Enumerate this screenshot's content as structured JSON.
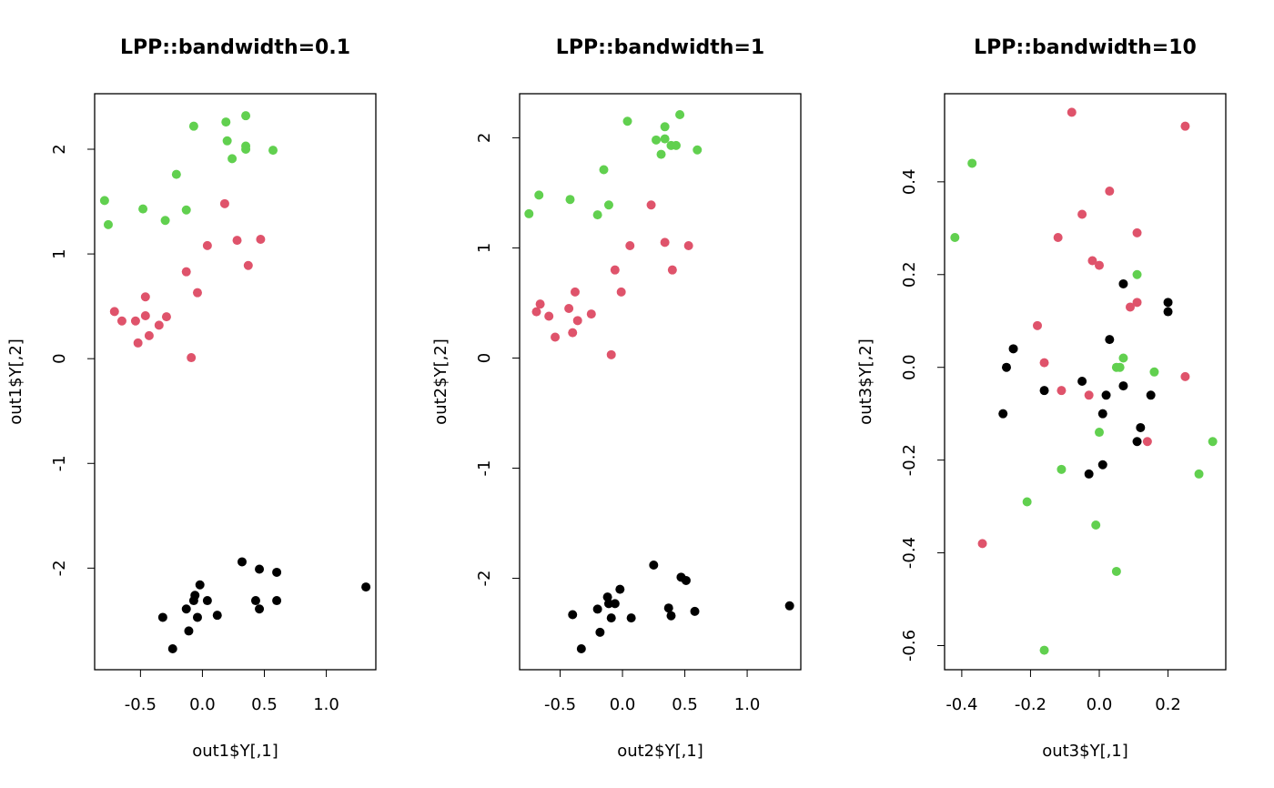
{
  "chart_data": [
    {
      "type": "scatter",
      "title": "LPP::bandwidth=0.1",
      "xlabel": "out1$Y[,1]",
      "ylabel": "out1$Y[,2]",
      "xlim": [
        -0.87,
        1.4
      ],
      "ylim": [
        -2.97,
        2.53
      ],
      "xticks": [
        -0.5,
        {
          "value": 0,
          "label": "0.0"
        },
        0.5,
        {
          "value": 1,
          "label": "1.0"
        }
      ],
      "yticks": [
        -2,
        -1,
        0,
        1,
        2
      ],
      "series": [
        {
          "color": "#61D04F",
          "x": [
            -0.79,
            -0.76,
            -0.48,
            -0.3,
            -0.21,
            -0.13,
            -0.07,
            0.19,
            0.2,
            0.24,
            0.35,
            0.35,
            0.35,
            0.57
          ],
          "values": [
            1.51,
            1.28,
            1.43,
            1.32,
            1.76,
            1.42,
            2.22,
            2.26,
            2.08,
            1.91,
            2.32,
            2.03,
            2.0,
            1.99
          ]
        },
        {
          "color": "#DF536B",
          "x": [
            -0.71,
            -0.65,
            -0.54,
            -0.52,
            -0.46,
            -0.46,
            -0.43,
            -0.35,
            -0.29,
            -0.13,
            -0.09,
            -0.04,
            0.04,
            0.18,
            0.28,
            0.37,
            0.47
          ],
          "values": [
            0.45,
            0.36,
            0.36,
            0.15,
            0.59,
            0.41,
            0.22,
            0.32,
            0.4,
            0.83,
            0.01,
            0.63,
            1.08,
            1.48,
            1.13,
            0.89,
            1.14
          ]
        },
        {
          "color": "#000000",
          "x": [
            -0.32,
            -0.24,
            -0.13,
            -0.11,
            -0.07,
            -0.06,
            -0.04,
            -0.02,
            0.04,
            0.12,
            0.32,
            0.43,
            0.46,
            0.46,
            0.6,
            0.6,
            1.32
          ],
          "values": [
            -2.47,
            -2.77,
            -2.39,
            -2.6,
            -2.31,
            -2.26,
            -2.47,
            -2.16,
            -2.31,
            -2.45,
            -1.94,
            -2.31,
            -2.01,
            -2.39,
            -2.04,
            -2.31,
            -2.18
          ]
        }
      ]
    },
    {
      "type": "scatter",
      "title": "LPP::bandwidth=1",
      "xlabel": "out2$Y[,1]",
      "ylabel": "out2$Y[,2]",
      "xlim": [
        -0.825,
        1.43
      ],
      "ylim": [
        -2.83,
        2.4
      ],
      "xticks": [
        -0.5,
        {
          "value": 0,
          "label": "0.0"
        },
        0.5,
        {
          "value": 1,
          "label": "1.0"
        }
      ],
      "yticks": [
        -2,
        -1,
        0,
        1,
        2
      ],
      "series": [
        {
          "color": "#61D04F",
          "x": [
            -0.75,
            -0.67,
            -0.42,
            -0.2,
            -0.15,
            -0.11,
            0.04,
            0.27,
            0.34,
            0.34,
            0.31,
            0.39,
            0.43,
            0.46,
            0.6
          ],
          "values": [
            1.31,
            1.48,
            1.44,
            1.3,
            1.71,
            1.39,
            2.15,
            1.98,
            2.1,
            1.99,
            1.85,
            1.93,
            1.93,
            2.21,
            1.89
          ]
        },
        {
          "color": "#DF536B",
          "x": [
            -0.69,
            -0.66,
            -0.59,
            -0.54,
            -0.43,
            -0.4,
            -0.38,
            -0.36,
            -0.25,
            -0.09,
            -0.06,
            -0.01,
            0.06,
            0.23,
            0.34,
            0.4,
            0.53
          ],
          "values": [
            0.42,
            0.49,
            0.38,
            0.19,
            0.45,
            0.23,
            0.6,
            0.34,
            0.4,
            0.03,
            0.8,
            0.6,
            1.02,
            1.39,
            1.05,
            0.8,
            1.02
          ]
        },
        {
          "color": "#000000",
          "x": [
            -0.4,
            -0.33,
            -0.2,
            -0.18,
            -0.12,
            -0.11,
            -0.09,
            -0.06,
            -0.02,
            0.07,
            0.25,
            0.47,
            0.37,
            0.39,
            0.51,
            0.58,
            1.34
          ],
          "values": [
            -2.33,
            -2.64,
            -2.28,
            -2.49,
            -2.17,
            -2.23,
            -2.36,
            -2.23,
            -2.1,
            -2.36,
            -1.88,
            -1.99,
            -2.27,
            -2.34,
            -2.02,
            -2.3,
            -2.25
          ]
        }
      ]
    },
    {
      "type": "scatter",
      "title": "LPP::bandwidth=10",
      "xlabel": "out3$Y[,1]",
      "ylabel": "out3$Y[,2]",
      "xlim": [
        -0.45,
        0.368
      ],
      "ylim": [
        -0.652,
        0.59
      ],
      "xticks": [
        -0.4,
        -0.2,
        {
          "value": 0,
          "label": "0.0"
        },
        0.2
      ],
      "yticks": [
        -0.6,
        -0.4,
        -0.2,
        {
          "value": 0,
          "label": "0.0"
        },
        0.2,
        0.4
      ],
      "series": [
        {
          "color": "#61D04F",
          "x": [
            -0.42,
            -0.37,
            -0.21,
            -0.11,
            -0.01,
            0.0,
            0.05,
            0.05,
            0.06,
            0.07,
            0.11,
            0.16,
            0.29,
            0.33,
            -0.16
          ],
          "values": [
            0.28,
            0.44,
            -0.29,
            -0.22,
            -0.34,
            -0.14,
            0.0,
            -0.44,
            0.0,
            0.02,
            0.2,
            -0.01,
            -0.23,
            -0.16,
            -0.61
          ]
        },
        {
          "color": "#DF536B",
          "x": [
            -0.34,
            -0.18,
            -0.16,
            -0.12,
            -0.11,
            -0.08,
            -0.05,
            -0.03,
            -0.02,
            0.0,
            0.03,
            0.11,
            0.11,
            0.09,
            0.14,
            0.25,
            0.25
          ],
          "values": [
            -0.38,
            0.09,
            0.01,
            0.28,
            -0.05,
            0.55,
            0.33,
            -0.06,
            0.23,
            0.22,
            0.38,
            0.29,
            0.14,
            0.13,
            -0.16,
            -0.02,
            0.52
          ]
        },
        {
          "color": "#000000",
          "x": [
            -0.28,
            -0.27,
            -0.25,
            -0.16,
            -0.05,
            -0.03,
            0.01,
            0.01,
            0.02,
            0.03,
            0.07,
            0.07,
            0.12,
            0.11,
            0.15,
            0.2,
            0.2
          ],
          "values": [
            -0.1,
            0.0,
            0.04,
            -0.05,
            -0.03,
            -0.23,
            -0.21,
            -0.1,
            -0.06,
            0.06,
            0.18,
            -0.04,
            -0.13,
            -0.16,
            -0.06,
            0.14,
            0.12
          ]
        }
      ]
    }
  ]
}
